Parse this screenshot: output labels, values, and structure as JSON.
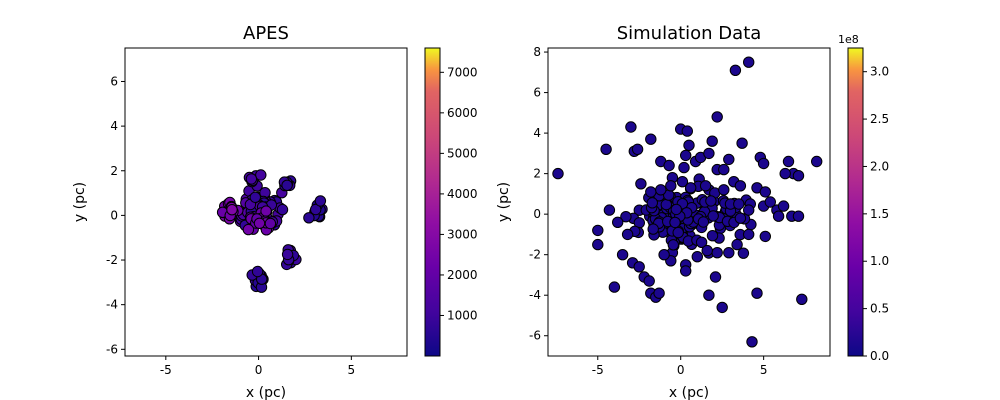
{
  "chart_data": [
    {
      "type": "scatter",
      "title": "APES",
      "xlabel": "x (pc)",
      "ylabel": "y (pc)",
      "xlim": [
        -7.2,
        8.0
      ],
      "ylim": [
        -6.3,
        7.5
      ],
      "xticks": [
        -5,
        0,
        5
      ],
      "yticks": [
        -6,
        -4,
        -2,
        0,
        2,
        4,
        6
      ],
      "grid": false,
      "colormap": "plasma",
      "colorbar": {
        "range": [
          0,
          7600
        ],
        "ticks": [
          1000,
          2000,
          3000,
          4000,
          5000,
          6000,
          7000
        ],
        "offset_label": ""
      },
      "marker_edge_color": "#000000",
      "point_color": "#2c0595",
      "clusters": [
        {
          "center": [
            0.0,
            0.3
          ],
          "spread": [
            0.9,
            0.6
          ],
          "count": 90,
          "value_range": [
            600,
            1400
          ]
        },
        {
          "center": [
            -1.6,
            0.2
          ],
          "spread": [
            0.35,
            0.3
          ],
          "count": 25,
          "value_range": [
            1800,
            2500
          ]
        },
        {
          "center": [
            0.1,
            -0.2
          ],
          "spread": [
            0.5,
            0.4
          ],
          "count": 25,
          "value_range": [
            1400,
            2200
          ]
        },
        {
          "center": [
            1.8,
            -1.9
          ],
          "spread": [
            0.3,
            0.3
          ],
          "count": 12,
          "value_range": [
            500,
            900
          ]
        },
        {
          "center": [
            0.1,
            -2.8
          ],
          "spread": [
            0.3,
            0.3
          ],
          "count": 12,
          "value_range": [
            400,
            800
          ]
        },
        {
          "center": [
            3.2,
            0.2
          ],
          "spread": [
            0.3,
            0.3
          ],
          "count": 10,
          "value_range": [
            300,
            700
          ]
        },
        {
          "center": [
            -0.3,
            1.6
          ],
          "spread": [
            0.3,
            0.2
          ],
          "count": 8,
          "value_range": [
            700,
            1200
          ]
        },
        {
          "center": [
            1.5,
            1.4
          ],
          "spread": [
            0.25,
            0.2
          ],
          "count": 8,
          "value_range": [
            500,
            900
          ]
        }
      ]
    },
    {
      "type": "scatter",
      "title": "Simulation Data",
      "xlabel": "x (pc)",
      "ylabel": "y (pc)",
      "xlim": [
        -8.0,
        9.0
      ],
      "ylim": [
        -7.0,
        8.2
      ],
      "xticks": [
        -5,
        0,
        5
      ],
      "yticks": [
        -6,
        -4,
        -2,
        0,
        2,
        4,
        6,
        8
      ],
      "grid": false,
      "colormap": "plasma",
      "colorbar": {
        "range": [
          0,
          3.25
        ],
        "ticks": [
          0.0,
          0.5,
          1.0,
          1.5,
          2.0,
          2.5,
          3.0
        ],
        "offset_label": "1e8"
      },
      "marker_edge_color": "#000000",
      "point_color": "#1b068d",
      "points": [
        [
          -7.4,
          2.0
        ],
        [
          -5.0,
          -0.8
        ],
        [
          -5.0,
          -1.5
        ],
        [
          -4.5,
          3.2
        ],
        [
          -4.3,
          0.2
        ],
        [
          -4.0,
          -3.6
        ],
        [
          -3.8,
          -0.4
        ],
        [
          -3.5,
          -2.0
        ],
        [
          -3.2,
          -1.0
        ],
        [
          -3.0,
          4.3
        ],
        [
          -2.8,
          3.1
        ],
        [
          -2.6,
          3.2
        ],
        [
          -2.9,
          -2.4
        ],
        [
          -2.5,
          -2.6
        ],
        [
          -2.2,
          -3.1
        ],
        [
          -1.9,
          -3.3
        ],
        [
          -1.8,
          -3.9
        ],
        [
          -1.5,
          -4.1
        ],
        [
          -1.3,
          -3.9
        ],
        [
          -1.8,
          3.7
        ],
        [
          -1.2,
          2.6
        ],
        [
          -0.7,
          2.4
        ],
        [
          -0.5,
          1.8
        ],
        [
          0.0,
          4.2
        ],
        [
          0.4,
          4.1
        ],
        [
          0.5,
          3.4
        ],
        [
          0.3,
          2.9
        ],
        [
          0.2,
          2.3
        ],
        [
          0.9,
          2.6
        ],
        [
          1.2,
          2.8
        ],
        [
          1.7,
          3.0
        ],
        [
          1.9,
          3.6
        ],
        [
          2.2,
          4.8
        ],
        [
          2.2,
          2.2
        ],
        [
          2.6,
          2.2
        ],
        [
          2.9,
          2.7
        ],
        [
          3.2,
          1.6
        ],
        [
          3.7,
          3.5
        ],
        [
          3.3,
          7.1
        ],
        [
          4.1,
          7.5
        ],
        [
          4.8,
          2.8
        ],
        [
          5.0,
          2.5
        ],
        [
          4.6,
          1.3
        ],
        [
          5.1,
          1.1
        ],
        [
          6.5,
          2.6
        ],
        [
          6.8,
          2.0
        ],
        [
          7.1,
          1.9
        ],
        [
          8.2,
          2.6
        ],
        [
          6.3,
          2.0
        ],
        [
          5.0,
          0.4
        ],
        [
          5.4,
          0.6
        ],
        [
          5.8,
          0.2
        ],
        [
          6.2,
          0.4
        ],
        [
          6.7,
          -0.1
        ],
        [
          7.1,
          -0.1
        ],
        [
          5.9,
          -0.1
        ],
        [
          5.1,
          -1.1
        ],
        [
          4.1,
          -1.0
        ],
        [
          3.4,
          -1.5
        ],
        [
          2.9,
          -1.9
        ],
        [
          2.2,
          -1.9
        ],
        [
          1.6,
          -1.8
        ],
        [
          1.0,
          -2.1
        ],
        [
          0.3,
          -2.5
        ],
        [
          0.3,
          -2.8
        ],
        [
          -0.6,
          -2.3
        ],
        [
          -1.0,
          -2.0
        ],
        [
          2.1,
          -3.1
        ],
        [
          1.7,
          -4.0
        ],
        [
          2.5,
          -4.6
        ],
        [
          4.6,
          -3.9
        ],
        [
          4.3,
          -6.3
        ],
        [
          7.3,
          -4.2
        ],
        [
          -2.4,
          1.5
        ],
        [
          -1.8,
          1.1
        ],
        [
          -1.2,
          1.2
        ],
        [
          -0.6,
          1.4
        ],
        [
          0.1,
          1.6
        ],
        [
          0.6,
          1.3
        ],
        [
          1.5,
          1.4
        ],
        [
          2.6,
          1.2
        ],
        [
          3.6,
          1.4
        ],
        [
          4.1,
          0.2
        ],
        [
          3.6,
          -0.2
        ],
        [
          3.0,
          0.5
        ],
        [
          3.5,
          0.5
        ]
      ],
      "core_cluster": {
        "center": [
          0.0,
          -0.1
        ],
        "spread": [
          1.6,
          0.7
        ],
        "count": 160
      }
    }
  ]
}
